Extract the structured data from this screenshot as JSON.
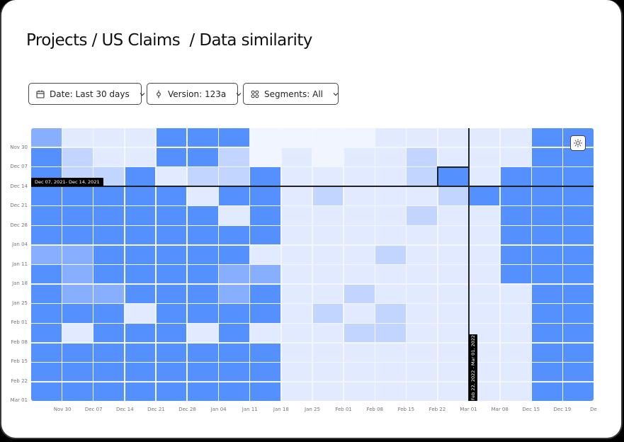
{
  "header": {
    "breadcrumb": "Projects / US Claims  / Data similarity",
    "breadcrumb_parts": [
      "Projects",
      "US Claims",
      "Data similarity"
    ]
  },
  "filters": {
    "date": {
      "label": "Date: Last 30 days",
      "icon": "calendar-icon"
    },
    "version": {
      "label": "Version: 123a",
      "icon": "commit-icon"
    },
    "segments": {
      "label": "Segments: All",
      "icon": "segments-icon"
    }
  },
  "settings_button": {
    "icon": "sun-icon"
  },
  "tooltips": {
    "row": "Dec 07, 2021- Dec 14, 2021",
    "column": "Feb 22, 2022 - Mar 01, 2022"
  },
  "colors": {
    "levels": [
      "#f0f5ff",
      "#e1eaff",
      "#c2d5ff",
      "#88afff",
      "#5590ff"
    ],
    "crosshair": "#222222",
    "tooltip_bg": "#000000"
  },
  "chart_data": {
    "type": "heatmap",
    "title": "Data similarity",
    "xlabel": "",
    "ylabel": "",
    "x_tick_labels": [
      "Nov 30",
      "Dec 07",
      "Dec 14",
      "Dec 21",
      "Dec 28",
      "Jan 04",
      "Jan 11",
      "Jan 18",
      "Jan 25",
      "Feb 01",
      "Feb 08",
      "Feb 15",
      "Feb 22",
      "Mar 01",
      "Mar 08",
      "Dec 15",
      "Dec 19",
      "De"
    ],
    "y_tick_labels": [
      "Nov 30",
      "Dec 07",
      "Dec 14",
      "Dec 21",
      "Dec 28",
      "Jan 04",
      "Jan 11",
      "Jan 18",
      "Jan 25",
      "Feb 01",
      "Feb 08",
      "Feb 15",
      "Feb 22",
      "Mar 01"
    ],
    "value_scale": "0 = lowest similarity (lightest) .. 4 = highest similarity (darkest blue)",
    "values": [
      [
        3,
        1,
        1,
        1,
        4,
        4,
        4,
        0,
        0,
        0,
        0,
        1,
        1,
        1,
        1,
        1,
        4,
        4
      ],
      [
        4,
        2,
        1,
        1,
        4,
        4,
        2,
        0,
        1,
        0,
        1,
        1,
        2,
        1,
        1,
        1,
        4,
        4
      ],
      [
        4,
        2,
        2,
        4,
        1,
        2,
        2,
        4,
        1,
        1,
        1,
        1,
        2,
        4,
        1,
        4,
        4,
        4
      ],
      [
        4,
        4,
        4,
        4,
        4,
        1,
        4,
        4,
        1,
        2,
        1,
        1,
        1,
        2,
        4,
        4,
        4,
        4
      ],
      [
        4,
        4,
        4,
        4,
        4,
        4,
        1,
        4,
        1,
        1,
        1,
        1,
        2,
        1,
        1,
        4,
        4,
        4
      ],
      [
        4,
        4,
        4,
        4,
        4,
        4,
        4,
        4,
        1,
        1,
        1,
        1,
        1,
        1,
        1,
        4,
        4,
        4
      ],
      [
        3,
        3,
        4,
        4,
        4,
        4,
        4,
        1,
        1,
        1,
        1,
        2,
        1,
        1,
        1,
        4,
        4,
        4
      ],
      [
        4,
        3,
        4,
        4,
        4,
        4,
        3,
        3,
        1,
        1,
        1,
        1,
        1,
        1,
        1,
        4,
        4,
        4
      ],
      [
        4,
        3,
        3,
        4,
        4,
        4,
        3,
        4,
        1,
        1,
        2,
        1,
        1,
        1,
        1,
        1,
        4,
        4
      ],
      [
        4,
        4,
        4,
        1,
        4,
        4,
        4,
        4,
        1,
        2,
        1,
        2,
        1,
        1,
        1,
        1,
        4,
        4
      ],
      [
        4,
        1,
        4,
        4,
        4,
        1,
        4,
        1,
        1,
        1,
        2,
        2,
        1,
        1,
        1,
        1,
        4,
        4
      ],
      [
        4,
        4,
        4,
        4,
        4,
        4,
        4,
        4,
        1,
        1,
        1,
        1,
        1,
        1,
        1,
        1,
        4,
        4
      ],
      [
        4,
        4,
        4,
        4,
        4,
        4,
        4,
        4,
        1,
        1,
        1,
        1,
        1,
        1,
        1,
        1,
        4,
        4
      ],
      [
        4,
        4,
        4,
        4,
        4,
        4,
        4,
        4,
        1,
        1,
        1,
        1,
        1,
        1,
        1,
        1,
        4,
        4
      ]
    ],
    "selected_cell": {
      "row": 2,
      "col": 13
    },
    "crosshair": {
      "row_boundary": "Dec 14",
      "col_boundary": "Mar 01"
    },
    "grid": true,
    "legend": "none"
  }
}
